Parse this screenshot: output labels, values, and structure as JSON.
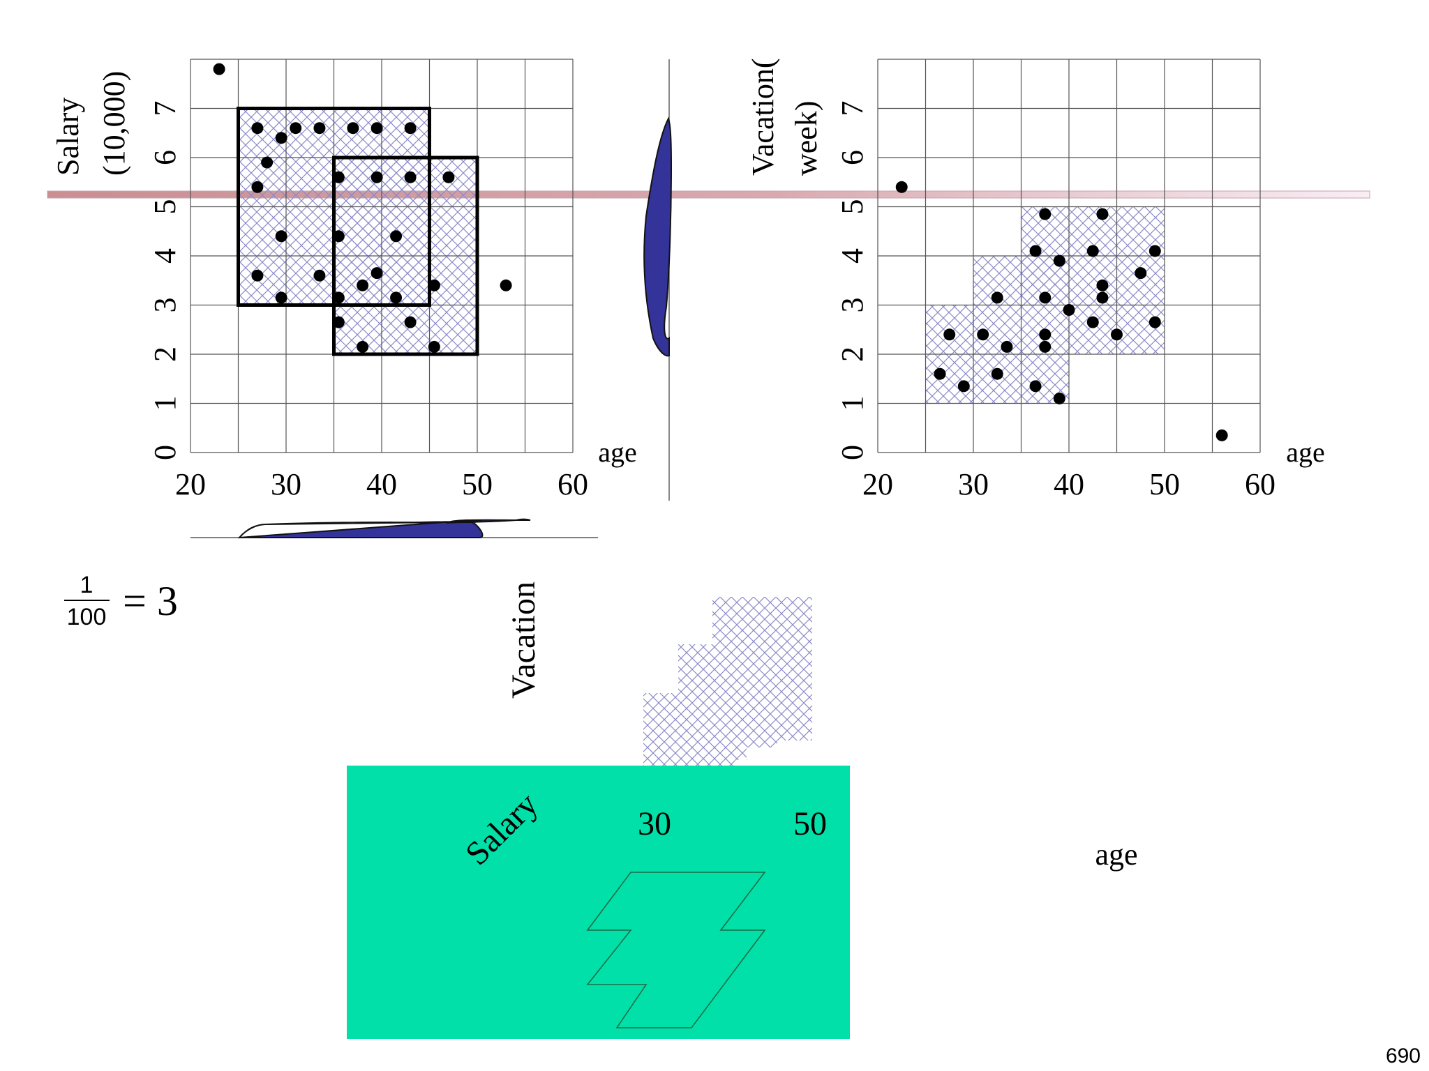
{
  "chart_data": [
    {
      "type": "scatter",
      "xlabel": "age",
      "ylabel_line1": "Salary",
      "ylabel_line2": "(10,000)",
      "x_ticks": [
        20,
        30,
        40,
        50,
        60
      ],
      "y_ticks": [
        0,
        1,
        2,
        3,
        4,
        5,
        6,
        7
      ],
      "xlim": [
        20,
        60
      ],
      "ylim": [
        0,
        8
      ],
      "grid": true,
      "dense_units": [
        {
          "x": [
            25,
            45
          ],
          "y": [
            3,
            7
          ]
        },
        {
          "x": [
            35,
            50
          ],
          "y": [
            2,
            6
          ]
        }
      ],
      "points": [
        [
          23,
          7.8
        ],
        [
          27,
          6.6
        ],
        [
          29.5,
          6.4
        ],
        [
          31,
          6.6
        ],
        [
          33.5,
          6.6
        ],
        [
          37,
          6.6
        ],
        [
          39.5,
          6.6
        ],
        [
          43,
          6.6
        ],
        [
          28,
          5.9
        ],
        [
          27,
          5.4
        ],
        [
          35.5,
          5.6
        ],
        [
          39.5,
          5.6
        ],
        [
          43,
          5.6
        ],
        [
          47,
          5.6
        ],
        [
          29.5,
          4.4
        ],
        [
          35.5,
          4.4
        ],
        [
          41.5,
          4.4
        ],
        [
          27,
          3.6
        ],
        [
          33.5,
          3.6
        ],
        [
          39.5,
          3.65
        ],
        [
          38,
          3.4
        ],
        [
          45.5,
          3.4
        ],
        [
          53,
          3.4
        ],
        [
          29.5,
          3.15
        ],
        [
          35.5,
          3.15
        ],
        [
          41.5,
          3.15
        ],
        [
          35.5,
          2.65
        ],
        [
          43,
          2.65
        ],
        [
          38,
          2.15
        ],
        [
          45.5,
          2.15
        ]
      ]
    },
    {
      "type": "scatter",
      "xlabel": "age",
      "ylabel_line1": "Vacation(",
      "ylabel_line2": "week)",
      "x_ticks": [
        20,
        30,
        40,
        50,
        60
      ],
      "y_ticks": [
        0,
        1,
        2,
        3,
        4,
        5,
        6,
        7
      ],
      "xlim": [
        20,
        60
      ],
      "ylim": [
        0,
        8
      ],
      "grid": true,
      "dense_units": [
        {
          "x": [
            25,
            35
          ],
          "y": [
            1,
            3
          ]
        },
        {
          "x": [
            30,
            40
          ],
          "y": [
            3,
            4
          ]
        },
        {
          "x": [
            35,
            40
          ],
          "y": [
            1,
            2
          ]
        },
        {
          "x": [
            35,
            45
          ],
          "y": [
            2,
            5
          ]
        },
        {
          "x": [
            45,
            50
          ],
          "y": [
            2,
            5
          ]
        }
      ],
      "points": [
        [
          22.5,
          5.4
        ],
        [
          37.5,
          4.85
        ],
        [
          43.5,
          4.85
        ],
        [
          36.5,
          4.1
        ],
        [
          42.5,
          4.1
        ],
        [
          49,
          4.1
        ],
        [
          39,
          3.9
        ],
        [
          47.5,
          3.65
        ],
        [
          43.5,
          3.4
        ],
        [
          32.5,
          3.15
        ],
        [
          37.5,
          3.15
        ],
        [
          43.5,
          3.15
        ],
        [
          40,
          2.9
        ],
        [
          42.5,
          2.65
        ],
        [
          49,
          2.65
        ],
        [
          27.5,
          2.4
        ],
        [
          31,
          2.4
        ],
        [
          37.5,
          2.4
        ],
        [
          45,
          2.4
        ],
        [
          33.5,
          2.15
        ],
        [
          37.5,
          2.15
        ],
        [
          26.5,
          1.6
        ],
        [
          32.5,
          1.6
        ],
        [
          29,
          1.35
        ],
        [
          36.5,
          1.35
        ],
        [
          39,
          1.1
        ],
        [
          56,
          0.35
        ]
      ]
    }
  ],
  "labels": {
    "equation_num": "1",
    "equation_den": "100",
    "equation_rhs": "= 3",
    "vacation": "Vacation",
    "salary": "Salary",
    "tick_30": "30",
    "tick_50": "50",
    "age": "age",
    "page_number": "690"
  },
  "colors": {
    "highlight_band": "#c98f92",
    "projection": "#33339a",
    "hatch": "#8a8ac8",
    "subspace": "#00e0a8"
  }
}
